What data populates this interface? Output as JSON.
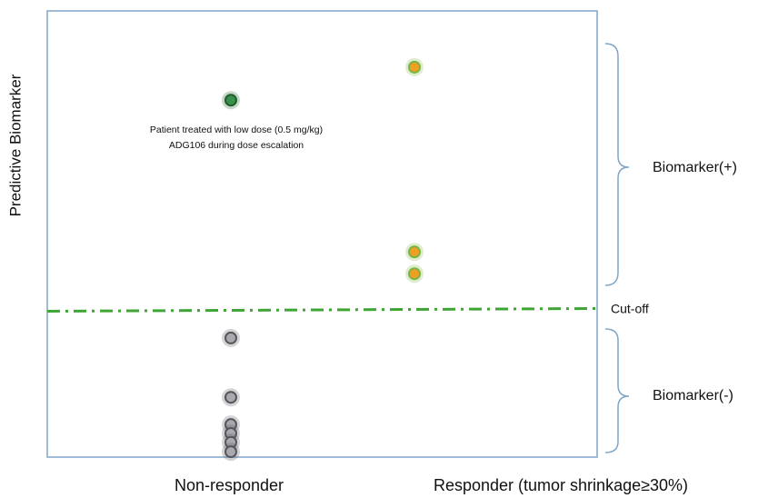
{
  "chart_data": {
    "type": "scatter",
    "ylabel": "Predictive Biomarker",
    "categories": [
      "Non-responder",
      "Responder (tumor shrinkage≥30%)"
    ],
    "ylim": [
      0,
      100
    ],
    "series": [
      {
        "x": [
          "Non-responder"
        ],
        "values": [
          80
        ],
        "color": "#3a8f4a",
        "edgecolor": "#1f5e2c"
      },
      {
        "x": [
          "Responder (tumor shrinkage≥30%)",
          "Responder (tumor shrinkage≥30%)",
          "Responder (tumor shrinkage≥30%)"
        ],
        "values": [
          87.4,
          46,
          41.1
        ],
        "color": "#f0a020",
        "edgecolor": "#7cb342"
      },
      {
        "x": [
          "Non-responder",
          "Non-responder",
          "Non-responder",
          "Non-responder",
          "Non-responder",
          "Non-responder"
        ],
        "values": [
          26.7,
          13.4,
          7.3,
          5.3,
          3.3,
          1.2
        ],
        "color": "#a9a9b0",
        "edgecolor": "#55555c"
      }
    ],
    "cutoff": {
      "value": 33,
      "label": "Cut-off",
      "color": "#3fa535"
    },
    "annotations": [
      "Patient treated with low dose (0.5 mg/kg)",
      "ADG106 during dose escalation"
    ],
    "groups": [
      "Biomarker(+)",
      "Biomarker(-)"
    ]
  }
}
